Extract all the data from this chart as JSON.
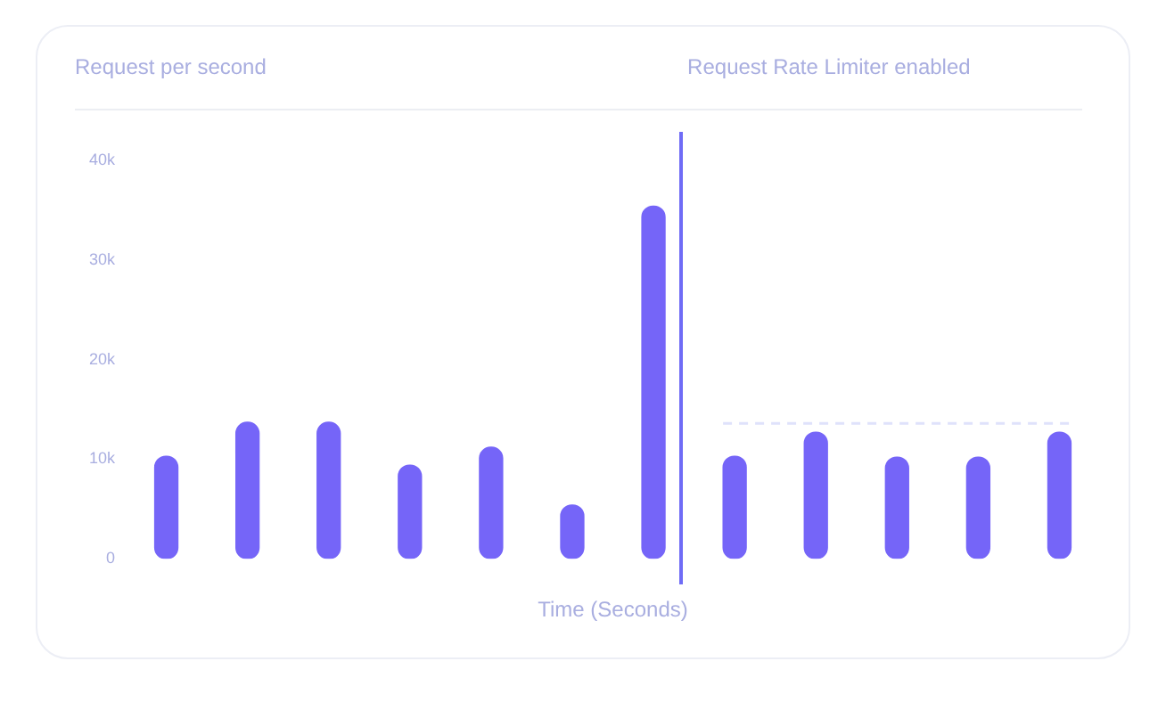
{
  "chart_data": {
    "type": "bar",
    "title": "Request per second",
    "xlabel": "Time (Seconds)",
    "categories": [
      null,
      null,
      null,
      null,
      null,
      null,
      null,
      null,
      null,
      null,
      null,
      null
    ],
    "values": [
      10300,
      13700,
      13700,
      9400,
      11200,
      5400,
      35400,
      10300,
      12700,
      10200,
      10200,
      12700
    ],
    "color": "#7565f8",
    "ylim": [
      0,
      40000
    ],
    "yticks": [
      0,
      {
        "value": 10000,
        "label": "10k"
      },
      {
        "value": 20000,
        "label": "20k"
      },
      {
        "value": 30000,
        "label": "30k"
      },
      {
        "value": 40000,
        "label": "40k"
      }
    ],
    "tick_labels": "y",
    "grid": false,
    "legend": false,
    "annotations": [
      "Request Rate Limiter enabled"
    ],
    "ref_lines": [
      {
        "axis": "y",
        "value": 13600,
        "color": "#dfe2fb",
        "line_style": "dashed"
      }
    ]
  }
}
